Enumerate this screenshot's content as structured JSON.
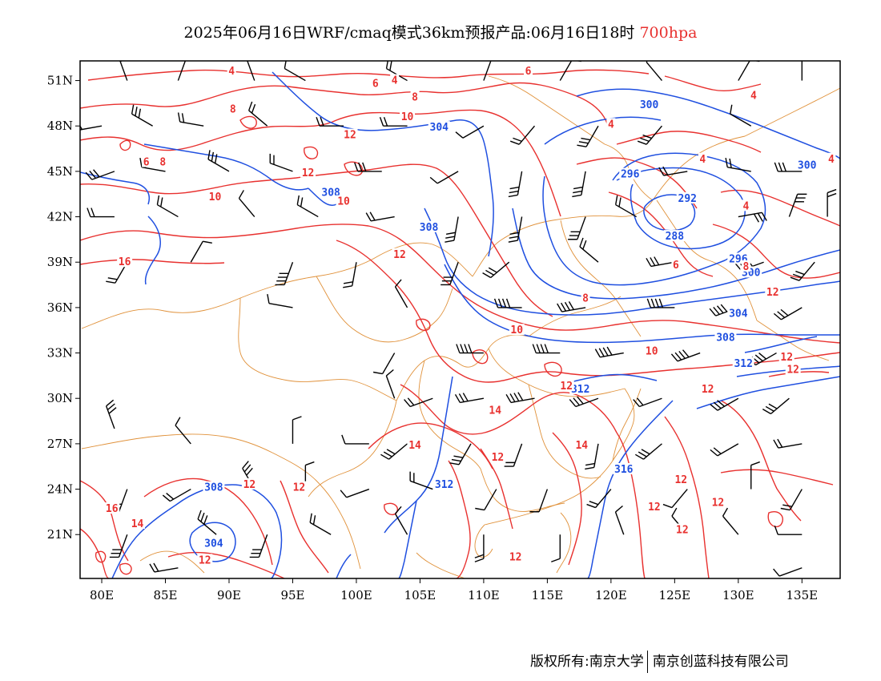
{
  "title": {
    "main": "2025年06月16日WRF/cmaq模式36km预报产品:06月16日18时 ",
    "level": "700hpa"
  },
  "map": {
    "lon_ticks": [
      "80E",
      "85E",
      "90E",
      "95E",
      "100E",
      "105E",
      "110E",
      "115E",
      "120E",
      "125E",
      "130E",
      "135E"
    ],
    "lat_ticks": [
      "51N",
      "48N",
      "45N",
      "42N",
      "39N",
      "36N",
      "33N",
      "30N",
      "27N",
      "24N",
      "21N"
    ],
    "extent": {
      "lon_min": 78.3,
      "lon_max": 138.0,
      "lat_min": 18.1,
      "lat_max": 52.3
    },
    "colors": {
      "temperature": "#e8312f",
      "geopotential": "#1f4fe0",
      "boundary": "#e0913a",
      "wind": "#000000"
    },
    "geopotential_labels": [
      {
        "text": "300",
        "lon": 123.0,
        "lat": 49.4
      },
      {
        "text": "304",
        "lon": 106.5,
        "lat": 47.9
      },
      {
        "text": "296",
        "lon": 121.5,
        "lat": 44.8
      },
      {
        "text": "292",
        "lon": 126.0,
        "lat": 43.2
      },
      {
        "text": "288",
        "lon": 125.0,
        "lat": 40.7
      },
      {
        "text": "296",
        "lon": 130.0,
        "lat": 39.2
      },
      {
        "text": "300",
        "lon": 131.0,
        "lat": 38.3
      },
      {
        "text": "304",
        "lon": 130.0,
        "lat": 35.6
      },
      {
        "text": "308",
        "lon": 129.0,
        "lat": 34.0
      },
      {
        "text": "308",
        "lon": 98.0,
        "lat": 43.6
      },
      {
        "text": "308",
        "lon": 105.7,
        "lat": 41.3
      },
      {
        "text": "312",
        "lon": 130.4,
        "lat": 32.3
      },
      {
        "text": "312",
        "lon": 117.6,
        "lat": 30.6
      },
      {
        "text": "312",
        "lon": 106.9,
        "lat": 24.3
      },
      {
        "text": "316",
        "lon": 121.0,
        "lat": 25.3
      },
      {
        "text": "308",
        "lon": 88.8,
        "lat": 24.1
      },
      {
        "text": "304",
        "lon": 88.8,
        "lat": 20.4
      },
      {
        "text": "300",
        "lon": 135.4,
        "lat": 45.4
      }
    ],
    "temperature_labels": [
      {
        "text": "4",
        "lon": 90.2,
        "lat": 51.6
      },
      {
        "text": "6",
        "lon": 101.5,
        "lat": 50.8
      },
      {
        "text": "4",
        "lon": 103.0,
        "lat": 51.0
      },
      {
        "text": "6",
        "lon": 113.5,
        "lat": 51.6
      },
      {
        "text": "8",
        "lon": 104.6,
        "lat": 49.9
      },
      {
        "text": "8",
        "lon": 90.3,
        "lat": 49.1
      },
      {
        "text": "10",
        "lon": 104.0,
        "lat": 48.6
      },
      {
        "text": "4",
        "lon": 120.0,
        "lat": 48.1
      },
      {
        "text": "4",
        "lon": 131.2,
        "lat": 50.0
      },
      {
        "text": "12",
        "lon": 99.5,
        "lat": 47.4
      },
      {
        "text": "6",
        "lon": 83.5,
        "lat": 45.6
      },
      {
        "text": "8",
        "lon": 84.8,
        "lat": 45.6
      },
      {
        "text": "12",
        "lon": 96.2,
        "lat": 44.9
      },
      {
        "text": "10",
        "lon": 88.9,
        "lat": 43.3
      },
      {
        "text": "10",
        "lon": 99.0,
        "lat": 43.0
      },
      {
        "text": "4",
        "lon": 127.2,
        "lat": 45.8
      },
      {
        "text": "4",
        "lon": 130.6,
        "lat": 42.7
      },
      {
        "text": "4",
        "lon": 137.3,
        "lat": 45.8
      },
      {
        "text": "12",
        "lon": 103.4,
        "lat": 39.5
      },
      {
        "text": "16",
        "lon": 81.8,
        "lat": 39.0
      },
      {
        "text": "6",
        "lon": 125.1,
        "lat": 38.8
      },
      {
        "text": "8",
        "lon": 130.6,
        "lat": 38.7
      },
      {
        "text": "8",
        "lon": 118.0,
        "lat": 36.6
      },
      {
        "text": "12",
        "lon": 132.7,
        "lat": 37.0
      },
      {
        "text": "10",
        "lon": 112.6,
        "lat": 34.5
      },
      {
        "text": "10",
        "lon": 123.2,
        "lat": 33.1
      },
      {
        "text": "12",
        "lon": 133.8,
        "lat": 32.7
      },
      {
        "text": "12",
        "lon": 134.3,
        "lat": 31.9
      },
      {
        "text": "12",
        "lon": 116.5,
        "lat": 30.8
      },
      {
        "text": "12",
        "lon": 127.6,
        "lat": 30.6
      },
      {
        "text": "14",
        "lon": 110.9,
        "lat": 29.2
      },
      {
        "text": "14",
        "lon": 104.6,
        "lat": 26.9
      },
      {
        "text": "14",
        "lon": 117.7,
        "lat": 26.9
      },
      {
        "text": "12",
        "lon": 111.1,
        "lat": 26.1
      },
      {
        "text": "12",
        "lon": 95.5,
        "lat": 24.1
      },
      {
        "text": "12",
        "lon": 91.6,
        "lat": 24.3
      },
      {
        "text": "12",
        "lon": 125.5,
        "lat": 24.6
      },
      {
        "text": "12",
        "lon": 128.4,
        "lat": 23.1
      },
      {
        "text": "12",
        "lon": 123.4,
        "lat": 22.8
      },
      {
        "text": "12",
        "lon": 125.6,
        "lat": 21.3
      },
      {
        "text": "16",
        "lon": 80.8,
        "lat": 22.7
      },
      {
        "text": "14",
        "lon": 82.8,
        "lat": 21.7
      },
      {
        "text": "12",
        "lon": 88.1,
        "lat": 19.3
      },
      {
        "text": "12",
        "lon": 112.5,
        "lat": 19.5
      }
    ],
    "wind_barbs": [
      {
        "lon": 82,
        "lat": 51,
        "dir": 340,
        "ff": 2
      },
      {
        "lon": 86,
        "lat": 51,
        "dir": 20,
        "ff": 1
      },
      {
        "lon": 92,
        "lat": 51,
        "dir": 340,
        "ff": 1
      },
      {
        "lon": 96,
        "lat": 51,
        "dir": 300,
        "ff": 1
      },
      {
        "lon": 104,
        "lat": 51,
        "dir": 300,
        "ff": 2
      },
      {
        "lon": 110,
        "lat": 51,
        "dir": 20,
        "ff": 1
      },
      {
        "lon": 116,
        "lat": 51,
        "dir": 30,
        "ff": 1
      },
      {
        "lon": 124,
        "lat": 51,
        "dir": 320,
        "ff": 1
      },
      {
        "lon": 130,
        "lat": 51,
        "dir": 30,
        "ff": 1
      },
      {
        "lon": 135,
        "lat": 51,
        "dir": 0,
        "ff": 1
      },
      {
        "lon": 80,
        "lat": 48,
        "dir": 260,
        "ff": 2
      },
      {
        "lon": 84,
        "lat": 48,
        "dir": 300,
        "ff": 3
      },
      {
        "lon": 88,
        "lat": 48,
        "dir": 280,
        "ff": 2
      },
      {
        "lon": 93,
        "lat": 48,
        "dir": 310,
        "ff": 2
      },
      {
        "lon": 99,
        "lat": 48,
        "dir": 270,
        "ff": 2
      },
      {
        "lon": 104,
        "lat": 48,
        "dir": 270,
        "ff": 2
      },
      {
        "lon": 110,
        "lat": 48,
        "dir": 240,
        "ff": 1
      },
      {
        "lon": 114,
        "lat": 48,
        "dir": 220,
        "ff": 2
      },
      {
        "lon": 119,
        "lat": 48,
        "dir": 210,
        "ff": 3
      },
      {
        "lon": 124,
        "lat": 48,
        "dir": 220,
        "ff": 3
      },
      {
        "lon": 131,
        "lat": 48,
        "dir": 300,
        "ff": 1
      },
      {
        "lon": 81,
        "lat": 45,
        "dir": 250,
        "ff": 3
      },
      {
        "lon": 85,
        "lat": 45,
        "dir": 280,
        "ff": 2
      },
      {
        "lon": 90,
        "lat": 45,
        "dir": 300,
        "ff": 3
      },
      {
        "lon": 95,
        "lat": 45,
        "dir": 290,
        "ff": 2
      },
      {
        "lon": 102,
        "lat": 45,
        "dir": 270,
        "ff": 3
      },
      {
        "lon": 108,
        "lat": 45,
        "dir": 240,
        "ff": 1
      },
      {
        "lon": 113,
        "lat": 45,
        "dir": 190,
        "ff": 3
      },
      {
        "lon": 118,
        "lat": 45,
        "dir": 190,
        "ff": 3
      },
      {
        "lon": 126,
        "lat": 45,
        "dir": 260,
        "ff": 2
      },
      {
        "lon": 131,
        "lat": 45,
        "dir": 280,
        "ff": 2
      },
      {
        "lon": 135,
        "lat": 45,
        "dir": 270,
        "ff": 3
      },
      {
        "lon": 81,
        "lat": 42,
        "dir": 270,
        "ff": 2
      },
      {
        "lon": 86,
        "lat": 42,
        "dir": 300,
        "ff": 2
      },
      {
        "lon": 92,
        "lat": 42,
        "dir": 320,
        "ff": 1
      },
      {
        "lon": 97,
        "lat": 42,
        "dir": 300,
        "ff": 2
      },
      {
        "lon": 103,
        "lat": 42,
        "dir": 260,
        "ff": 2
      },
      {
        "lon": 108,
        "lat": 42,
        "dir": 190,
        "ff": 3
      },
      {
        "lon": 113,
        "lat": 42,
        "dir": 190,
        "ff": 3
      },
      {
        "lon": 118,
        "lat": 42,
        "dir": 200,
        "ff": 3
      },
      {
        "lon": 122,
        "lat": 42,
        "dir": 300,
        "ff": 2
      },
      {
        "lon": 130,
        "lat": 42,
        "dir": 80,
        "ff": 3
      },
      {
        "lon": 134,
        "lat": 42,
        "dir": 20,
        "ff": 3
      },
      {
        "lon": 137,
        "lat": 42,
        "dir": 0,
        "ff": 2
      },
      {
        "lon": 82,
        "lat": 39,
        "dir": 210,
        "ff": 2
      },
      {
        "lon": 87,
        "lat": 39,
        "dir": 30,
        "ff": 1
      },
      {
        "lon": 95,
        "lat": 39,
        "dir": 200,
        "ff": 4
      },
      {
        "lon": 100,
        "lat": 39,
        "dir": 190,
        "ff": 2
      },
      {
        "lon": 108,
        "lat": 39,
        "dir": 200,
        "ff": 3
      },
      {
        "lon": 112,
        "lat": 39,
        "dir": 230,
        "ff": 3
      },
      {
        "lon": 119,
        "lat": 39,
        "dir": 310,
        "ff": 2
      },
      {
        "lon": 125,
        "lat": 39,
        "dir": 260,
        "ff": 3
      },
      {
        "lon": 132,
        "lat": 39,
        "dir": 250,
        "ff": 4
      },
      {
        "lon": 136,
        "lat": 39,
        "dir": 220,
        "ff": 3
      },
      {
        "lon": 95,
        "lat": 36,
        "dir": 280,
        "ff": 1
      },
      {
        "lon": 104,
        "lat": 36,
        "dir": 330,
        "ff": 1
      },
      {
        "lon": 113,
        "lat": 36,
        "dir": 270,
        "ff": 4
      },
      {
        "lon": 118,
        "lat": 36,
        "dir": 260,
        "ff": 4
      },
      {
        "lon": 125,
        "lat": 36,
        "dir": 270,
        "ff": 4
      },
      {
        "lon": 130,
        "lat": 36,
        "dir": 250,
        "ff": 4
      },
      {
        "lon": 135,
        "lat": 36,
        "dir": 240,
        "ff": 3
      },
      {
        "lon": 103,
        "lat": 33,
        "dir": 210,
        "ff": 1
      },
      {
        "lon": 110,
        "lat": 33,
        "dir": 270,
        "ff": 4
      },
      {
        "lon": 116,
        "lat": 33,
        "dir": 270,
        "ff": 4
      },
      {
        "lon": 121,
        "lat": 33,
        "dir": 260,
        "ff": 4
      },
      {
        "lon": 127,
        "lat": 33,
        "dir": 250,
        "ff": 4
      },
      {
        "lon": 133,
        "lat": 33,
        "dir": 240,
        "ff": 4
      },
      {
        "lon": 103,
        "lat": 30,
        "dir": 340,
        "ff": 1
      },
      {
        "lon": 106,
        "lat": 30,
        "dir": 250,
        "ff": 2
      },
      {
        "lon": 110,
        "lat": 30,
        "dir": 260,
        "ff": 3
      },
      {
        "lon": 114,
        "lat": 30,
        "dir": 260,
        "ff": 4
      },
      {
        "lon": 119,
        "lat": 30,
        "dir": 250,
        "ff": 3
      },
      {
        "lon": 124,
        "lat": 30,
        "dir": 250,
        "ff": 2
      },
      {
        "lon": 130,
        "lat": 30,
        "dir": 240,
        "ff": 3
      },
      {
        "lon": 134,
        "lat": 30,
        "dir": 230,
        "ff": 3
      },
      {
        "lon": 81,
        "lat": 28,
        "dir": 340,
        "ff": 3
      },
      {
        "lon": 87,
        "lat": 27,
        "dir": 320,
        "ff": 1
      },
      {
        "lon": 95,
        "lat": 27,
        "dir": 0,
        "ff": 1
      },
      {
        "lon": 101,
        "lat": 27,
        "dir": 270,
        "ff": 1
      },
      {
        "lon": 104,
        "lat": 27,
        "dir": 230,
        "ff": 3
      },
      {
        "lon": 109,
        "lat": 27,
        "dir": 210,
        "ff": 3
      },
      {
        "lon": 113,
        "lat": 27,
        "dir": 200,
        "ff": 2
      },
      {
        "lon": 119,
        "lat": 27,
        "dir": 190,
        "ff": 2
      },
      {
        "lon": 124,
        "lat": 27,
        "dir": 230,
        "ff": 3
      },
      {
        "lon": 130,
        "lat": 27,
        "dir": 240,
        "ff": 2
      },
      {
        "lon": 135,
        "lat": 27,
        "dir": 260,
        "ff": 2
      },
      {
        "lon": 82,
        "lat": 24,
        "dir": 200,
        "ff": 3
      },
      {
        "lon": 87,
        "lat": 24,
        "dir": 240,
        "ff": 2
      },
      {
        "lon": 92,
        "lat": 24,
        "dir": 330,
        "ff": 3
      },
      {
        "lon": 96,
        "lat": 24,
        "dir": 0,
        "ff": 1
      },
      {
        "lon": 101,
        "lat": 24,
        "dir": 250,
        "ff": 1
      },
      {
        "lon": 106,
        "lat": 24,
        "dir": 290,
        "ff": 2
      },
      {
        "lon": 111,
        "lat": 24,
        "dir": 210,
        "ff": 1
      },
      {
        "lon": 115,
        "lat": 24,
        "dir": 200,
        "ff": 1
      },
      {
        "lon": 120,
        "lat": 24,
        "dir": 220,
        "ff": 2
      },
      {
        "lon": 126,
        "lat": 24,
        "dir": 220,
        "ff": 1
      },
      {
        "lon": 131,
        "lat": 24,
        "dir": 0,
        "ff": 1
      },
      {
        "lon": 135,
        "lat": 24,
        "dir": 210,
        "ff": 2
      },
      {
        "lon": 82,
        "lat": 21,
        "dir": 200,
        "ff": 3
      },
      {
        "lon": 89,
        "lat": 21,
        "dir": 310,
        "ff": 3
      },
      {
        "lon": 93,
        "lat": 21,
        "dir": 200,
        "ff": 3
      },
      {
        "lon": 98,
        "lat": 21,
        "dir": 300,
        "ff": 2
      },
      {
        "lon": 104,
        "lat": 21,
        "dir": 330,
        "ff": 1
      },
      {
        "lon": 110,
        "lat": 21,
        "dir": 180,
        "ff": 2
      },
      {
        "lon": 116,
        "lat": 21,
        "dir": 180,
        "ff": 1
      },
      {
        "lon": 121,
        "lat": 21,
        "dir": 340,
        "ff": 1
      },
      {
        "lon": 126,
        "lat": 21,
        "dir": 320,
        "ff": 1
      },
      {
        "lon": 130,
        "lat": 21,
        "dir": 320,
        "ff": 1
      },
      {
        "lon": 135,
        "lat": 21,
        "dir": 270,
        "ff": 1
      },
      {
        "lon": 86,
        "lat": 18.8,
        "dir": 260,
        "ff": 2
      },
      {
        "lon": 135,
        "lat": 18.8,
        "dir": 250,
        "ff": 1
      }
    ]
  },
  "footer": {
    "left": "版权所有:南京大学",
    "right": "南京创蓝科技有限公司"
  }
}
